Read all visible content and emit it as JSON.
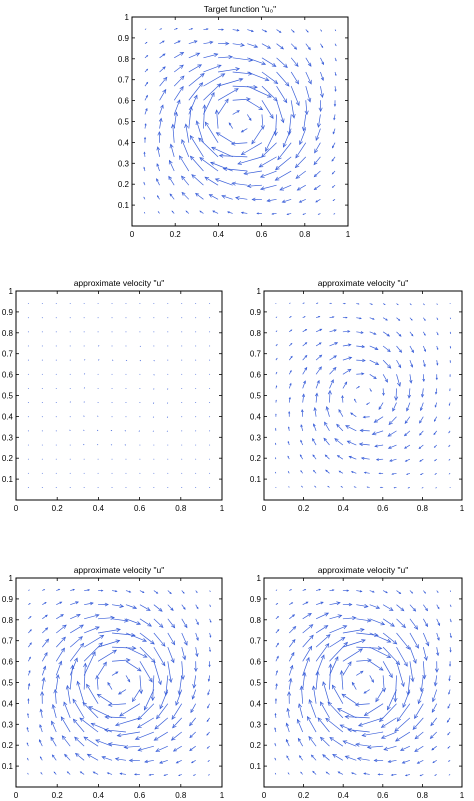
{
  "figure": {
    "arrow_color": "#3a5fd9",
    "axis_color": "#000000",
    "background": "#ffffff"
  },
  "chart_data": [
    {
      "type": "quiver",
      "title": "Target function \"u₀\"",
      "xlim": [
        0,
        1
      ],
      "ylim": [
        0,
        1
      ],
      "xticks": [
        "0",
        "0.2",
        "0.4",
        "0.6",
        "0.8",
        "1"
      ],
      "yticks": [
        "0.1",
        "0.2",
        "0.3",
        "0.4",
        "0.5",
        "0.6",
        "0.7",
        "0.8",
        "0.9",
        "1"
      ],
      "grid": false,
      "field": "vortex",
      "center": [
        0.5,
        0.5
      ],
      "samples_per_axis": 14,
      "arrow_scale": 1.0
    },
    {
      "type": "quiver",
      "title": "approximate velocity \"u\"",
      "xlim": [
        0,
        1
      ],
      "ylim": [
        0,
        1
      ],
      "xticks": [
        "0",
        "0.2",
        "0.4",
        "0.6",
        "0.8",
        "1"
      ],
      "yticks": [
        "0.1",
        "0.2",
        "0.3",
        "0.4",
        "0.5",
        "0.6",
        "0.7",
        "0.8",
        "0.9",
        "1"
      ],
      "grid": false,
      "field": "vortex",
      "center": [
        0.5,
        0.5
      ],
      "samples_per_axis": 14,
      "arrow_scale": 0.03
    },
    {
      "type": "quiver",
      "title": "approximate velocity \"u\"",
      "xlim": [
        0,
        1
      ],
      "ylim": [
        0,
        1
      ],
      "xticks": [
        "0",
        "0.2",
        "0.4",
        "0.6",
        "0.8",
        "1"
      ],
      "yticks": [
        "0.1",
        "0.2",
        "0.3",
        "0.4",
        "0.5",
        "0.6",
        "0.7",
        "0.8",
        "0.9",
        "1"
      ],
      "grid": false,
      "field": "vortex",
      "center": [
        0.5,
        0.5
      ],
      "samples_per_axis": 14,
      "arrow_scale": 0.45
    },
    {
      "type": "quiver",
      "title": "approximate velocity \"u\"",
      "xlim": [
        0,
        1
      ],
      "ylim": [
        0,
        1
      ],
      "xticks": [
        "0",
        "0.2",
        "0.4",
        "0.6",
        "0.8",
        "1"
      ],
      "yticks": [
        "0.1",
        "0.2",
        "0.3",
        "0.4",
        "0.5",
        "0.6",
        "0.7",
        "0.8",
        "0.9",
        "1"
      ],
      "grid": false,
      "field": "vortex",
      "center": [
        0.5,
        0.5
      ],
      "samples_per_axis": 14,
      "arrow_scale": 1.0
    },
    {
      "type": "quiver",
      "title": "approximate velocity \"u\"",
      "xlim": [
        0,
        1
      ],
      "ylim": [
        0,
        1
      ],
      "xticks": [
        "0",
        "0.2",
        "0.4",
        "0.6",
        "0.8",
        "1"
      ],
      "yticks": [
        "0.1",
        "0.2",
        "0.3",
        "0.4",
        "0.5",
        "0.6",
        "0.7",
        "0.8",
        "0.9",
        "1"
      ],
      "grid": false,
      "field": "vortex",
      "center": [
        0.5,
        0.5
      ],
      "samples_per_axis": 14,
      "arrow_scale": 1.0
    }
  ]
}
